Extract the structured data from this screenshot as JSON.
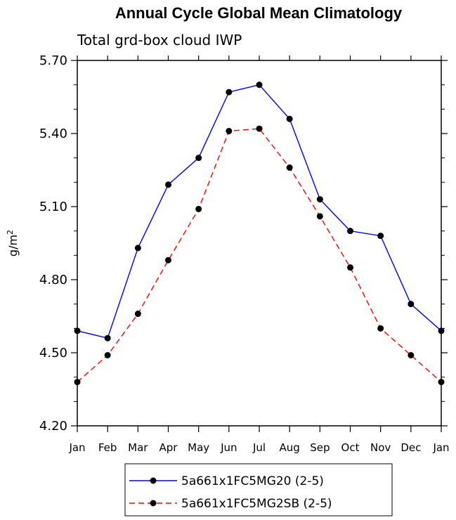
{
  "chart_data": {
    "type": "line",
    "title": "Annual Cycle Global Mean Climatology",
    "subtitle": "Total grd-box cloud IWP",
    "ylabel": "g/m",
    "ylabel_superscript": "2",
    "xlabel": "",
    "categories": [
      "Jan",
      "Feb",
      "Mar",
      "Apr",
      "May",
      "Jun",
      "Jul",
      "Aug",
      "Sep",
      "Oct",
      "Nov",
      "Dec",
      "Jan"
    ],
    "ylim": [
      4.2,
      5.7
    ],
    "yticks": [
      "4.20",
      "4.50",
      "4.80",
      "5.10",
      "5.40",
      "5.70"
    ],
    "series": [
      {
        "name": "5a661x1FC5MG20 (2-5)",
        "color": "#0000ff",
        "dash": "solid",
        "values": [
          4.59,
          4.56,
          4.93,
          5.19,
          5.3,
          5.57,
          5.6,
          5.46,
          5.13,
          5.0,
          4.98,
          4.7,
          4.59
        ]
      },
      {
        "name": "5a661x1FC5MG2SB (2-5)",
        "color": "#ff0000",
        "dash": "dashed",
        "values": [
          4.38,
          4.49,
          4.66,
          4.88,
          5.09,
          5.41,
          5.42,
          5.26,
          5.06,
          4.85,
          4.6,
          4.49,
          4.38
        ]
      }
    ]
  }
}
